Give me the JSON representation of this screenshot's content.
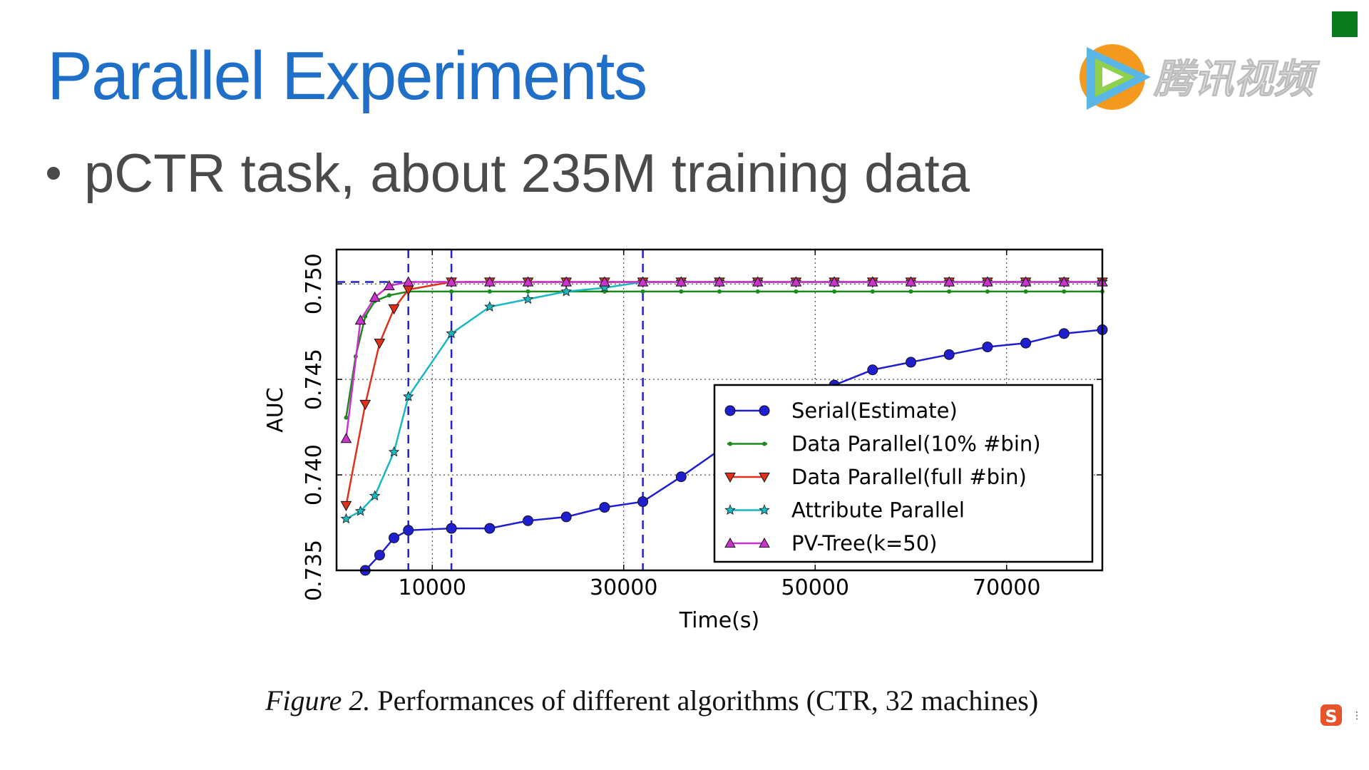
{
  "slide": {
    "title": "Parallel Experiments",
    "bullet": "pCTR task, about 235M training data",
    "watermark_text": "腾讯视频",
    "caption_label": "Figure 2.",
    "caption_text": "Performances of different algorithms (CTR, 32 machines)",
    "ime_badge": "S"
  },
  "colors": {
    "title": "#1f6fc8",
    "bullet": "#4a4a4a",
    "corner_square": "#0b7a1f"
  },
  "chart_data": {
    "type": "line",
    "xlabel": "Time(s)",
    "ylabel": "AUC",
    "xlim": [
      0,
      80000
    ],
    "ylim": [
      0.735,
      0.7518
    ],
    "xticks": [
      10000,
      30000,
      50000,
      70000
    ],
    "yticks": [
      0.735,
      0.74,
      0.745,
      0.75
    ],
    "ytick_labels": [
      "0.735",
      "0.740",
      "0.745",
      "0.750"
    ],
    "grid": true,
    "legend_position": "lower-right",
    "reference_lines": {
      "horizontal_y": [
        0.7501
      ],
      "vertical_x": [
        7500,
        12000,
        32000
      ],
      "style": "dashed",
      "color": "#2222cc"
    },
    "series": [
      {
        "name": "Serial(Estimate)",
        "color": "#1f1fd0",
        "marker": "circle",
        "x": [
          1500,
          3000,
          4500,
          6000,
          7500,
          12000,
          16000,
          20000,
          24000,
          28000,
          32000,
          36000,
          40000,
          44000,
          48000,
          52000,
          56000,
          60000,
          64000,
          68000,
          72000,
          76000,
          80000
        ],
        "y": [
          0.7335,
          0.735,
          0.7358,
          0.7367,
          0.7371,
          0.7372,
          0.7372,
          0.7376,
          0.7378,
          0.7383,
          0.7386,
          0.7399,
          0.7413,
          0.7426,
          0.7438,
          0.7447,
          0.7455,
          0.7459,
          0.7463,
          0.7467,
          0.7469,
          0.7474,
          0.7476
        ]
      },
      {
        "name": "Data Parallel(10% #bin)",
        "color": "#1a8a1a",
        "marker": "point",
        "x": [
          1000,
          2000,
          3000,
          4000,
          5500,
          7500,
          12000,
          16000,
          20000,
          24000,
          28000,
          32000,
          36000,
          40000,
          44000,
          48000,
          52000,
          56000,
          60000,
          64000,
          68000,
          72000,
          76000,
          80000
        ],
        "y": [
          0.743,
          0.7462,
          0.7483,
          0.7491,
          0.7494,
          0.7496,
          0.7496,
          0.7496,
          0.7496,
          0.7496,
          0.7496,
          0.7496,
          0.7496,
          0.7496,
          0.7496,
          0.7496,
          0.7496,
          0.7496,
          0.7496,
          0.7496,
          0.7496,
          0.7496,
          0.7496,
          0.7496
        ]
      },
      {
        "name": "Data Parallel(full #bin)",
        "color": "#e0301a",
        "marker": "triangle-down",
        "x": [
          1000,
          3000,
          4500,
          6000,
          7500,
          12000,
          16000,
          20000,
          24000,
          28000,
          32000,
          36000,
          40000,
          44000,
          48000,
          52000,
          56000,
          60000,
          64000,
          68000,
          72000,
          76000,
          80000
        ],
        "y": [
          0.7384,
          0.7437,
          0.7469,
          0.7487,
          0.7497,
          0.7501,
          0.7501,
          0.7501,
          0.7501,
          0.7501,
          0.7501,
          0.7501,
          0.7501,
          0.7501,
          0.7501,
          0.7501,
          0.7501,
          0.7501,
          0.7501,
          0.7501,
          0.7501,
          0.7501,
          0.7501
        ]
      },
      {
        "name": "Attribute Parallel",
        "color": "#18b8c0",
        "marker": "star",
        "x": [
          1000,
          2500,
          4000,
          6000,
          7500,
          12000,
          16000,
          20000,
          24000,
          28000,
          32000,
          36000,
          40000,
          44000,
          48000,
          52000,
          56000,
          60000,
          64000,
          68000,
          72000,
          76000,
          80000
        ],
        "y": [
          0.7377,
          0.7381,
          0.7389,
          0.7412,
          0.7441,
          0.7474,
          0.7488,
          0.7492,
          0.7496,
          0.7498,
          0.7501,
          0.7501,
          0.7501,
          0.7501,
          0.7501,
          0.7501,
          0.7501,
          0.7501,
          0.7501,
          0.7501,
          0.7501,
          0.7501,
          0.7501
        ]
      },
      {
        "name": "PV-Tree(k=50)",
        "color": "#cc33cc",
        "marker": "triangle-up",
        "x": [
          1000,
          2500,
          4000,
          5500,
          7500,
          12000,
          16000,
          20000,
          24000,
          28000,
          32000,
          36000,
          40000,
          44000,
          48000,
          52000,
          56000,
          60000,
          64000,
          68000,
          72000,
          76000,
          80000
        ],
        "y": [
          0.7419,
          0.7481,
          0.7493,
          0.7499,
          0.7501,
          0.7501,
          0.7501,
          0.7501,
          0.7501,
          0.7501,
          0.7501,
          0.7501,
          0.7501,
          0.7501,
          0.7501,
          0.7501,
          0.7501,
          0.7501,
          0.7501,
          0.7501,
          0.7501,
          0.7501,
          0.7501
        ]
      }
    ]
  }
}
